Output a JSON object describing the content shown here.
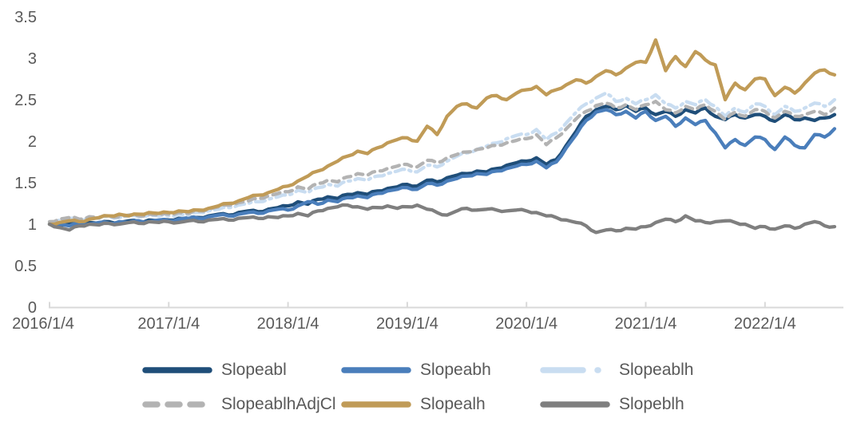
{
  "colors": {
    "background": "#ffffff",
    "axis": "#d9d9d9",
    "text": "#595959"
  },
  "chart_data": {
    "type": "line",
    "title": "",
    "xlabel": "",
    "ylabel": "",
    "grid": false,
    "legend_position": "bottom",
    "x_sampling": "monthly estimates read from daily curves, 2016/1 through 2022/8",
    "x_axis": {
      "tick_labels": [
        "2016/1/4",
        "2017/1/4",
        "2018/1/4",
        "2019/1/4",
        "2020/1/4",
        "2021/1/4",
        "2022/1/4"
      ]
    },
    "y_axis": {
      "min": 0,
      "max": 3.5,
      "step": 0.5,
      "tick_labels": [
        "0",
        "0.5",
        "1",
        "1.5",
        "2",
        "2.5",
        "3",
        "3.5"
      ]
    },
    "series": [
      {
        "name": "Slopeabl",
        "color": "#1f4e79",
        "line_style": "solid",
        "values": [
          1.0,
          0.98,
          1.01,
          1.0,
          1.02,
          1.01,
          1.03,
          1.02,
          1.04,
          1.03,
          1.05,
          1.04,
          1.05,
          1.07,
          1.06,
          1.08,
          1.1,
          1.12,
          1.11,
          1.14,
          1.16,
          1.15,
          1.18,
          1.2,
          1.22,
          1.27,
          1.24,
          1.3,
          1.33,
          1.31,
          1.36,
          1.38,
          1.36,
          1.4,
          1.43,
          1.45,
          1.48,
          1.46,
          1.53,
          1.51,
          1.56,
          1.59,
          1.61,
          1.64,
          1.63,
          1.67,
          1.71,
          1.74,
          1.76,
          1.8,
          1.72,
          1.78,
          1.95,
          2.12,
          2.3,
          2.38,
          2.42,
          2.38,
          2.43,
          2.36,
          2.4,
          2.32,
          2.36,
          2.3,
          2.38,
          2.34,
          2.4,
          2.3,
          2.26,
          2.32,
          2.28,
          2.32,
          2.3,
          2.24,
          2.32,
          2.26,
          2.28,
          2.25,
          2.28,
          2.32
        ]
      },
      {
        "name": "Slopeabh",
        "color": "#4a7ebb",
        "line_style": "solid",
        "values": [
          1.0,
          1.0,
          0.98,
          1.01,
          1.0,
          1.02,
          1.01,
          1.03,
          1.02,
          1.04,
          1.03,
          1.05,
          1.04,
          1.06,
          1.08,
          1.07,
          1.09,
          1.11,
          1.1,
          1.12,
          1.14,
          1.13,
          1.16,
          1.18,
          1.17,
          1.22,
          1.27,
          1.24,
          1.29,
          1.27,
          1.32,
          1.34,
          1.32,
          1.37,
          1.4,
          1.42,
          1.44,
          1.42,
          1.49,
          1.47,
          1.52,
          1.55,
          1.58,
          1.61,
          1.6,
          1.64,
          1.67,
          1.7,
          1.72,
          1.76,
          1.68,
          1.75,
          1.92,
          2.08,
          2.25,
          2.35,
          2.38,
          2.32,
          2.36,
          2.28,
          2.36,
          2.25,
          2.3,
          2.18,
          2.28,
          2.2,
          2.25,
          2.1,
          1.92,
          2.02,
          1.95,
          2.05,
          2.02,
          1.9,
          2.05,
          1.95,
          1.92,
          2.08,
          2.05,
          2.15
        ]
      },
      {
        "name": "Slopeablh",
        "color": "#c9ddf1",
        "line_style": "dash-dot",
        "values": [
          1.02,
          1.05,
          1.07,
          1.05,
          1.08,
          1.07,
          1.09,
          1.08,
          1.1,
          1.09,
          1.11,
          1.1,
          1.1,
          1.12,
          1.11,
          1.14,
          1.16,
          1.18,
          1.2,
          1.23,
          1.25,
          1.27,
          1.3,
          1.33,
          1.35,
          1.41,
          1.38,
          1.44,
          1.48,
          1.46,
          1.52,
          1.55,
          1.53,
          1.58,
          1.61,
          1.64,
          1.66,
          1.63,
          1.71,
          1.69,
          1.76,
          1.82,
          1.86,
          1.9,
          1.94,
          1.98,
          2.03,
          2.07,
          2.08,
          2.14,
          2.02,
          2.1,
          2.22,
          2.35,
          2.45,
          2.52,
          2.58,
          2.48,
          2.52,
          2.45,
          2.5,
          2.56,
          2.45,
          2.4,
          2.48,
          2.44,
          2.5,
          2.42,
          2.3,
          2.4,
          2.35,
          2.45,
          2.42,
          2.32,
          2.42,
          2.36,
          2.4,
          2.46,
          2.42,
          2.5
        ]
      },
      {
        "name": "SlopeablhAdjCl",
        "color": "#b3b3b3",
        "line_style": "dashed",
        "values": [
          1.03,
          1.06,
          1.08,
          1.06,
          1.09,
          1.08,
          1.1,
          1.09,
          1.11,
          1.1,
          1.12,
          1.11,
          1.12,
          1.14,
          1.13,
          1.16,
          1.18,
          1.21,
          1.23,
          1.26,
          1.28,
          1.31,
          1.34,
          1.37,
          1.39,
          1.45,
          1.42,
          1.49,
          1.53,
          1.51,
          1.57,
          1.61,
          1.59,
          1.64,
          1.67,
          1.7,
          1.72,
          1.69,
          1.77,
          1.74,
          1.8,
          1.84,
          1.87,
          1.9,
          1.92,
          1.95,
          1.98,
          2.01,
          2.03,
          2.08,
          1.96,
          2.04,
          2.15,
          2.27,
          2.36,
          2.43,
          2.46,
          2.4,
          2.44,
          2.38,
          2.44,
          2.48,
          2.38,
          2.34,
          2.42,
          2.38,
          2.44,
          2.36,
          2.26,
          2.35,
          2.3,
          2.38,
          2.36,
          2.28,
          2.36,
          2.3,
          2.32,
          2.36,
          2.32,
          2.4
        ]
      },
      {
        "name": "Slopealh",
        "color": "#c09b57",
        "line_style": "solid",
        "values": [
          1.0,
          1.02,
          1.04,
          1.03,
          1.06,
          1.08,
          1.1,
          1.12,
          1.1,
          1.12,
          1.14,
          1.13,
          1.14,
          1.16,
          1.15,
          1.17,
          1.19,
          1.22,
          1.25,
          1.28,
          1.32,
          1.35,
          1.38,
          1.42,
          1.46,
          1.52,
          1.58,
          1.64,
          1.7,
          1.76,
          1.82,
          1.88,
          1.85,
          1.92,
          1.98,
          2.02,
          2.04,
          2.0,
          2.18,
          2.08,
          2.3,
          2.42,
          2.45,
          2.4,
          2.52,
          2.55,
          2.5,
          2.58,
          2.62,
          2.66,
          2.56,
          2.62,
          2.68,
          2.74,
          2.7,
          2.78,
          2.85,
          2.8,
          2.88,
          2.95,
          2.95,
          3.22,
          2.85,
          3.02,
          2.9,
          3.08,
          2.98,
          2.92,
          2.5,
          2.7,
          2.62,
          2.75,
          2.75,
          2.55,
          2.65,
          2.58,
          2.7,
          2.82,
          2.86,
          2.8
        ]
      },
      {
        "name": "Slopeblh",
        "color": "#7f7f7f",
        "line_style": "solid",
        "values": [
          1.0,
          0.96,
          0.93,
          0.98,
          1.0,
          0.99,
          1.01,
          1.0,
          1.02,
          1.01,
          1.03,
          1.02,
          1.03,
          1.02,
          1.04,
          1.03,
          1.05,
          1.06,
          1.05,
          1.07,
          1.08,
          1.07,
          1.09,
          1.08,
          1.1,
          1.13,
          1.1,
          1.16,
          1.19,
          1.21,
          1.23,
          1.21,
          1.18,
          1.2,
          1.22,
          1.19,
          1.21,
          1.23,
          1.18,
          1.14,
          1.11,
          1.16,
          1.19,
          1.17,
          1.18,
          1.17,
          1.16,
          1.17,
          1.16,
          1.14,
          1.1,
          1.08,
          1.05,
          1.02,
          0.98,
          0.9,
          0.93,
          0.92,
          0.95,
          0.94,
          0.97,
          1.02,
          1.06,
          1.03,
          1.1,
          1.04,
          1.02,
          1.03,
          1.04,
          1.02,
          1.0,
          0.95,
          0.97,
          0.94,
          0.98,
          0.95,
          1.0,
          1.03,
          0.98,
          0.97
        ]
      }
    ]
  }
}
